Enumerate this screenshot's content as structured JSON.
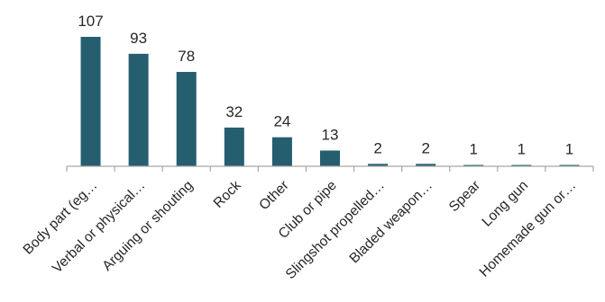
{
  "chart_data": {
    "type": "bar",
    "title": "",
    "xlabel": "",
    "ylabel": "",
    "categories": [
      "Body part (eg…",
      "Verbal or physical…",
      "Arguing or shouting",
      "Rock",
      "Other",
      "Club or pipe",
      "Slingshot propelled…",
      "Bladed weapon…",
      "Spear",
      "Long gun",
      "Homemade gun or…"
    ],
    "values": [
      107,
      93,
      78,
      32,
      24,
      13,
      2,
      2,
      1,
      1,
      1
    ],
    "data_labels": [
      "107",
      "93",
      "78",
      "32",
      "24",
      "13",
      "2",
      "2",
      "1",
      "1",
      "1"
    ],
    "ylim": [
      0,
      107
    ],
    "bar_color": "#255e6f",
    "axis_color": "#a6a6a6",
    "grid": false,
    "legend": "none"
  }
}
